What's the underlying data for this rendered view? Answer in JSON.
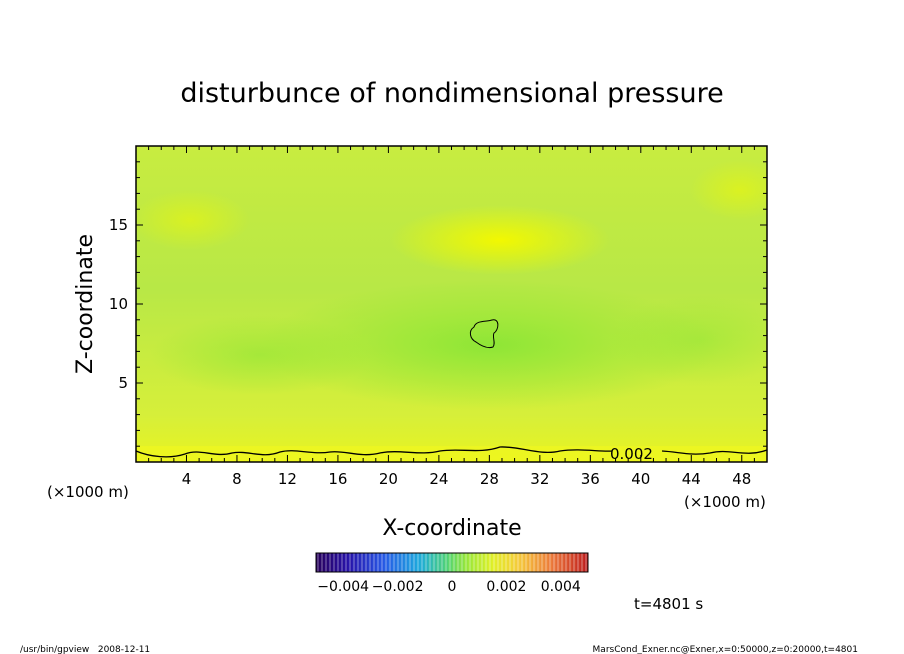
{
  "chart_data": {
    "type": "heatmap",
    "title": "disturbunce of nondimensional pressure",
    "xlabel": "X-coordinate",
    "ylabel": "Z-coordinate",
    "x_unit": "(×1000 m)",
    "y_unit": "(×1000 m)",
    "xlim": [
      0,
      50
    ],
    "ylim": [
      0,
      20
    ],
    "x_ticks": [
      4,
      8,
      12,
      16,
      20,
      24,
      28,
      32,
      36,
      40,
      44,
      48
    ],
    "y_ticks": [
      5,
      10,
      15
    ],
    "contour_labels": [
      "0.002"
    ],
    "colorbar": {
      "range": [
        -0.005,
        0.005
      ],
      "tick_values": [
        -0.004,
        -0.002,
        0,
        0.002,
        0.004
      ],
      "tick_labels": [
        "−0.004",
        "−0.002",
        "0",
        "0.002",
        "0.004"
      ]
    },
    "grid": false
  },
  "time_label": "t=4801 s",
  "footer": {
    "left": "/usr/bin/gpview   2008-12-11",
    "right": "MarsCond_Exner.nc@Exner,x=0:50000,z=0:20000,t=4801"
  }
}
